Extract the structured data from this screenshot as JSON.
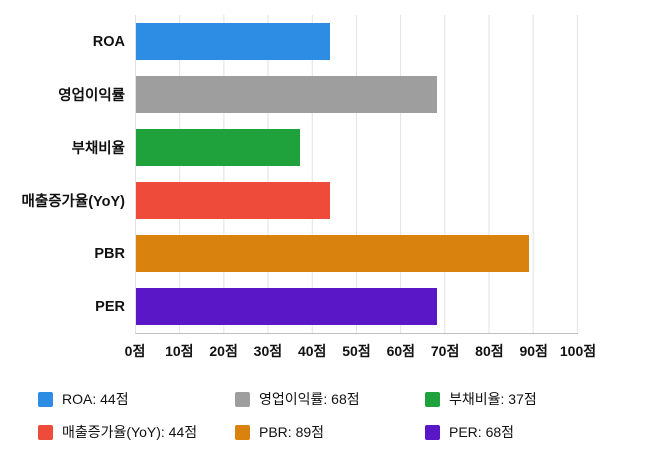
{
  "chart_data": {
    "type": "bar",
    "orientation": "horizontal",
    "title": "",
    "xlabel": "",
    "ylabel": "",
    "categories": [
      "ROA",
      "영업이익률",
      "부채비율",
      "매출증가율(YoY)",
      "PBR",
      "PER"
    ],
    "values": [
      44,
      68,
      37,
      44,
      89,
      68
    ],
    "unit": "점",
    "colors": [
      "#2D8CE3",
      "#9E9E9E",
      "#1FA23C",
      "#EE4B3A",
      "#D9820E",
      "#5917C8"
    ],
    "xlim": [
      0,
      100
    ],
    "x_ticks": [
      "0점",
      "10점",
      "20점",
      "30점",
      "40점",
      "50점",
      "60점",
      "70점",
      "80점",
      "90점",
      "100점"
    ],
    "grid": "vertical",
    "legend_position": "bottom",
    "legend": [
      "ROA: 44점",
      "영업이익률: 68점",
      "부채비율: 37점",
      "매출증가율(YoY): 44점",
      "PBR: 89점",
      "PER: 68점"
    ]
  }
}
